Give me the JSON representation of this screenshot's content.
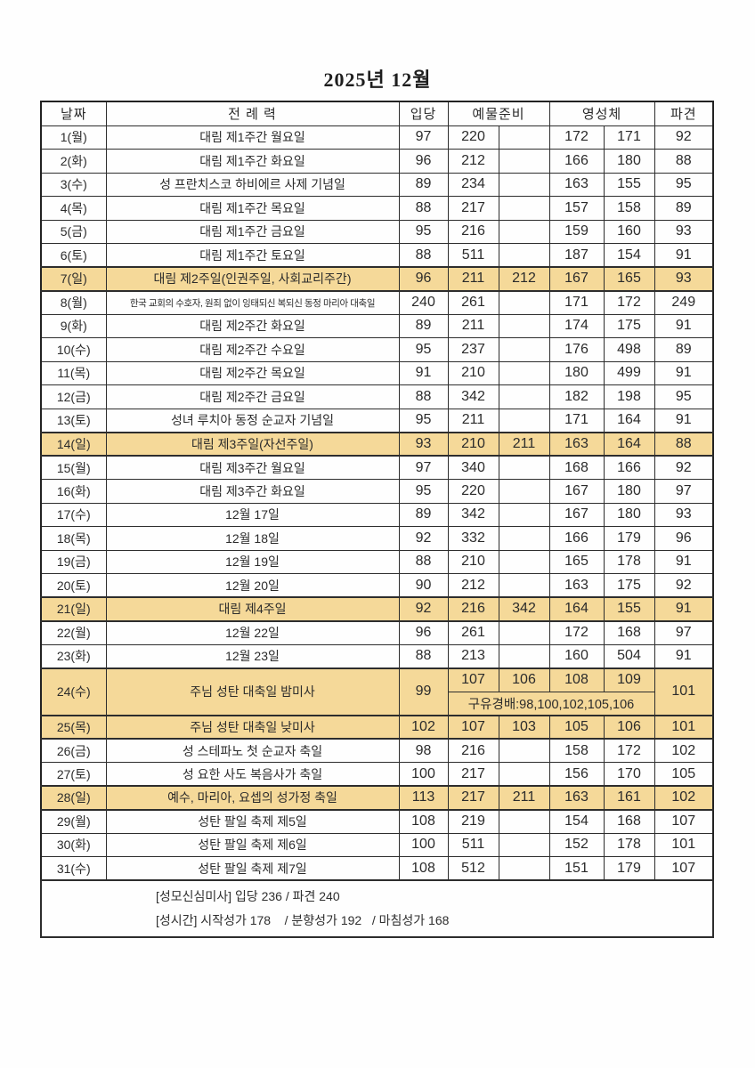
{
  "page": {
    "title": "2025년 12월"
  },
  "colors": {
    "highlight": "#F5D999",
    "border": "#2D2D2D",
    "text": "#262626",
    "background": "#FFFFFF"
  },
  "table": {
    "headers": {
      "date": "날짜",
      "liturgy": "전 례 력",
      "entrance": "입당",
      "offertory": "예물준비",
      "communion": "영성체",
      "dismissal": "파견"
    },
    "rows": [
      {
        "date": "1(월)",
        "liturgy": "대림 제1주간 월요일",
        "entrance": "97",
        "offertory1": "220",
        "offertory2": "",
        "communion1": "172",
        "communion2": "171",
        "dismissal": "92"
      },
      {
        "date": "2(화)",
        "liturgy": "대림 제1주간 화요일",
        "entrance": "96",
        "offertory1": "212",
        "offertory2": "",
        "communion1": "166",
        "communion2": "180",
        "dismissal": "88"
      },
      {
        "date": "3(수)",
        "liturgy": "성 프란치스코 하비에르 사제 기념일",
        "entrance": "89",
        "offertory1": "234",
        "offertory2": "",
        "communion1": "163",
        "communion2": "155",
        "dismissal": "95"
      },
      {
        "date": "4(목)",
        "liturgy": "대림 제1주간 목요일",
        "entrance": "88",
        "offertory1": "217",
        "offertory2": "",
        "communion1": "157",
        "communion2": "158",
        "dismissal": "89"
      },
      {
        "date": "5(금)",
        "liturgy": "대림 제1주간 금요일",
        "entrance": "95",
        "offertory1": "216",
        "offertory2": "",
        "communion1": "159",
        "communion2": "160",
        "dismissal": "93"
      },
      {
        "date": "6(토)",
        "liturgy": "대림 제1주간 토요일",
        "entrance": "88",
        "offertory1": "511",
        "offertory2": "",
        "communion1": "187",
        "communion2": "154",
        "dismissal": "91"
      },
      {
        "date": "7(일)",
        "liturgy": "대림 제2주일(인권주일, 사회교리주간)",
        "entrance": "96",
        "offertory1": "211",
        "offertory2": "212",
        "communion1": "167",
        "communion2": "165",
        "dismissal": "93",
        "highlight": true
      },
      {
        "date": "8(월)",
        "liturgy": "한국 교회의 수호자, 원죄 없이 잉태되신 복되신 동정 마리아 대축일",
        "entrance": "240",
        "offertory1": "261",
        "offertory2": "",
        "communion1": "171",
        "communion2": "172",
        "dismissal": "249",
        "small": true
      },
      {
        "date": "9(화)",
        "liturgy": "대림 제2주간 화요일",
        "entrance": "89",
        "offertory1": "211",
        "offertory2": "",
        "communion1": "174",
        "communion2": "175",
        "dismissal": "91"
      },
      {
        "date": "10(수)",
        "liturgy": "대림 제2주간 수요일",
        "entrance": "95",
        "offertory1": "237",
        "offertory2": "",
        "communion1": "176",
        "communion2": "498",
        "dismissal": "89"
      },
      {
        "date": "11(목)",
        "liturgy": "대림 제2주간 목요일",
        "entrance": "91",
        "offertory1": "210",
        "offertory2": "",
        "communion1": "180",
        "communion2": "499",
        "dismissal": "91"
      },
      {
        "date": "12(금)",
        "liturgy": "대림 제2주간 금요일",
        "entrance": "88",
        "offertory1": "342",
        "offertory2": "",
        "communion1": "182",
        "communion2": "198",
        "dismissal": "95"
      },
      {
        "date": "13(토)",
        "liturgy": "성녀 루치아 동정 순교자 기념일",
        "entrance": "95",
        "offertory1": "211",
        "offertory2": "",
        "communion1": "171",
        "communion2": "164",
        "dismissal": "91"
      },
      {
        "date": "14(일)",
        "liturgy": "대림 제3주일(자선주일)",
        "entrance": "93",
        "offertory1": "210",
        "offertory2": "211",
        "communion1": "163",
        "communion2": "164",
        "dismissal": "88",
        "highlight": true
      },
      {
        "date": "15(월)",
        "liturgy": "대림 제3주간 월요일",
        "entrance": "97",
        "offertory1": "340",
        "offertory2": "",
        "communion1": "168",
        "communion2": "166",
        "dismissal": "92"
      },
      {
        "date": "16(화)",
        "liturgy": "대림 제3주간 화요일",
        "entrance": "95",
        "offertory1": "220",
        "offertory2": "",
        "communion1": "167",
        "communion2": "180",
        "dismissal": "97"
      },
      {
        "date": "17(수)",
        "liturgy": "12월 17일",
        "entrance": "89",
        "offertory1": "342",
        "offertory2": "",
        "communion1": "167",
        "communion2": "180",
        "dismissal": "93"
      },
      {
        "date": "18(목)",
        "liturgy": "12월 18일",
        "entrance": "92",
        "offertory1": "332",
        "offertory2": "",
        "communion1": "166",
        "communion2": "179",
        "dismissal": "96"
      },
      {
        "date": "19(금)",
        "liturgy": "12월 19일",
        "entrance": "88",
        "offertory1": "210",
        "offertory2": "",
        "communion1": "165",
        "communion2": "178",
        "dismissal": "91"
      },
      {
        "date": "20(토)",
        "liturgy": "12월 20일",
        "entrance": "90",
        "offertory1": "212",
        "offertory2": "",
        "communion1": "163",
        "communion2": "175",
        "dismissal": "92"
      },
      {
        "date": "21(일)",
        "liturgy": "대림 제4주일",
        "entrance": "92",
        "offertory1": "216",
        "offertory2": "342",
        "communion1": "164",
        "communion2": "155",
        "dismissal": "91",
        "highlight": true
      },
      {
        "date": "22(월)",
        "liturgy": "12월 22일",
        "entrance": "96",
        "offertory1": "261",
        "offertory2": "",
        "communion1": "172",
        "communion2": "168",
        "dismissal": "97"
      },
      {
        "date": "23(화)",
        "liturgy": "12월 23일",
        "entrance": "88",
        "offertory1": "213",
        "offertory2": "",
        "communion1": "160",
        "communion2": "504",
        "dismissal": "91"
      },
      {
        "date": "24(수)",
        "liturgy": "주님 성탄 대축일 밤미사",
        "entrance": "99",
        "dismissal": "101",
        "highlight": true,
        "special": {
          "top": [
            "107",
            "106",
            "108",
            "109"
          ],
          "bottom": "구유경배:98,100,102,105,106"
        }
      },
      {
        "date": "25(목)",
        "liturgy": "주님 성탄 대축일 낮미사",
        "entrance": "102",
        "offertory1": "107",
        "offertory2": "103",
        "communion1": "105",
        "communion2": "106",
        "dismissal": "101",
        "highlight": true
      },
      {
        "date": "26(금)",
        "liturgy": "성 스테파노 첫 순교자 축일",
        "entrance": "98",
        "offertory1": "216",
        "offertory2": "",
        "communion1": "158",
        "communion2": "172",
        "dismissal": "102"
      },
      {
        "date": "27(토)",
        "liturgy": "성 요한 사도 복음사가 축일",
        "entrance": "100",
        "offertory1": "217",
        "offertory2": "",
        "communion1": "156",
        "communion2": "170",
        "dismissal": "105"
      },
      {
        "date": "28(일)",
        "liturgy": "예수, 마리아, 요셉의 성가정 축일",
        "entrance": "113",
        "offertory1": "217",
        "offertory2": "211",
        "communion1": "163",
        "communion2": "161",
        "dismissal": "102",
        "highlight": true
      },
      {
        "date": "29(월)",
        "liturgy": "성탄 팔일 축제 제5일",
        "entrance": "108",
        "offertory1": "219",
        "offertory2": "",
        "communion1": "154",
        "communion2": "168",
        "dismissal": "107"
      },
      {
        "date": "30(화)",
        "liturgy": "성탄 팔일 축제 제6일",
        "entrance": "100",
        "offertory1": "511",
        "offertory2": "",
        "communion1": "152",
        "communion2": "178",
        "dismissal": "101"
      },
      {
        "date": "31(수)",
        "liturgy": "성탄 팔일 축제 제7일",
        "entrance": "108",
        "offertory1": "512",
        "offertory2": "",
        "communion1": "151",
        "communion2": "179",
        "dismissal": "107"
      }
    ],
    "footer": {
      "line1": "[성모신심미사] 입당 236 / 파견 240",
      "line2": "[성시간] 시작성가 178    / 분향성가 192   / 마침성가 168"
    }
  }
}
